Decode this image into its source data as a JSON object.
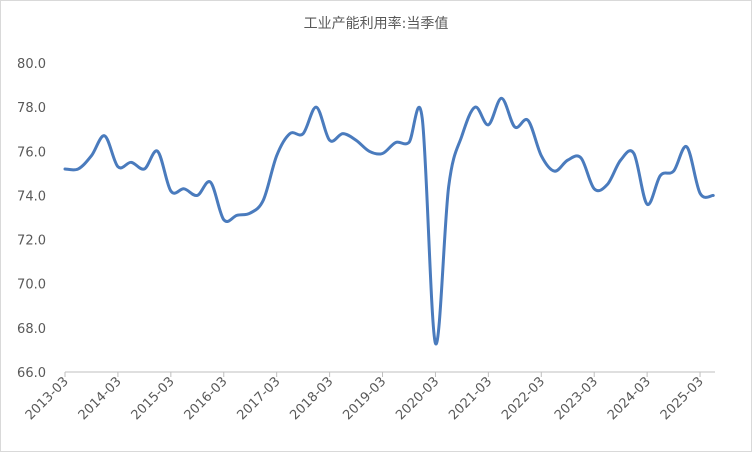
{
  "chart_data": {
    "type": "line",
    "title": "工业产能利用率:当季值",
    "categories": [
      "2013-03",
      null,
      null,
      null,
      "2014-03",
      null,
      null,
      null,
      "2015-03",
      null,
      null,
      null,
      "2016-03",
      null,
      null,
      null,
      "2017-03",
      null,
      null,
      null,
      "2018-03",
      null,
      null,
      null,
      "2019-03",
      null,
      null,
      null,
      "2020-03",
      null,
      null,
      null,
      "2021-03",
      null,
      null,
      null,
      "2022-03",
      null,
      null,
      null,
      "2023-03",
      null,
      null,
      null,
      "2024-03",
      null,
      null,
      null,
      "2025-03",
      null
    ],
    "series": [
      {
        "name": "工业产能利用率:当季值",
        "color": "#4a7bbd",
        "values": [
          75.2,
          75.2,
          75.8,
          76.7,
          75.3,
          75.5,
          75.2,
          76.0,
          74.2,
          74.3,
          74.0,
          74.6,
          72.9,
          73.1,
          73.2,
          73.8,
          75.8,
          76.8,
          76.8,
          78.0,
          76.5,
          76.8,
          76.5,
          76.0,
          75.9,
          76.4,
          76.4,
          77.5,
          67.3,
          74.4,
          76.7,
          78.0,
          77.2,
          78.4,
          77.1,
          77.4,
          75.8,
          75.1,
          75.6,
          75.7,
          74.3,
          74.5,
          75.6,
          75.9,
          73.6,
          74.9,
          75.1,
          76.2,
          74.1,
          74.0
        ]
      }
    ],
    "ylim": [
      66,
      80
    ],
    "yticks": [
      {
        "value": 66,
        "label": "66.0"
      },
      {
        "value": 68,
        "label": "68.0"
      },
      {
        "value": 70,
        "label": "70.0"
      },
      {
        "value": 72,
        "label": "72.0"
      },
      {
        "value": 74,
        "label": "74.0"
      },
      {
        "value": 76,
        "label": "76.0"
      },
      {
        "value": 78,
        "label": "78.0"
      },
      {
        "value": 80,
        "label": "80.0"
      }
    ],
    "grid": false
  }
}
